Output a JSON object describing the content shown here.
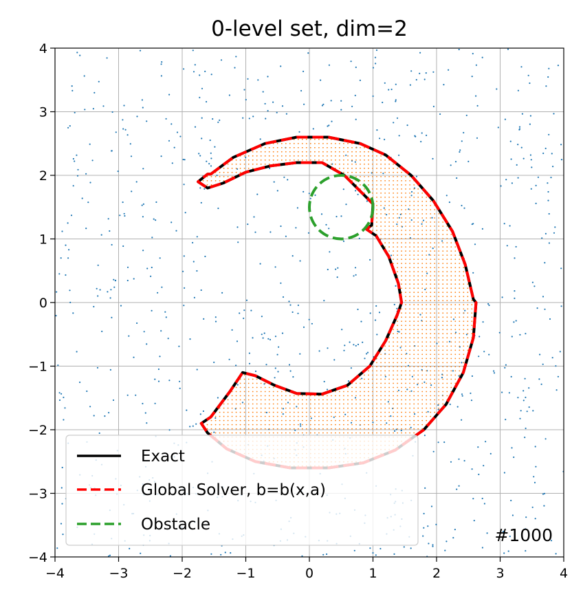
{
  "chart_data": {
    "type": "line",
    "title": "0-level set, dim=2",
    "xlabel": "",
    "ylabel": "",
    "xlim": [
      -4,
      4
    ],
    "ylim": [
      -4,
      4
    ],
    "xticks": [
      -4,
      -3,
      -2,
      -1,
      0,
      1,
      2,
      3,
      4
    ],
    "yticks": [
      -4,
      -3,
      -2,
      -1,
      0,
      1,
      2,
      3,
      4
    ],
    "xtick_labels": [
      "−4",
      "−3",
      "−2",
      "−1",
      "0",
      "1",
      "2",
      "3",
      "4"
    ],
    "ytick_labels": [
      "−4",
      "−3",
      "−2",
      "−1",
      "0",
      "1",
      "2",
      "3",
      "4"
    ],
    "grid": true,
    "legend_position": "lower-left",
    "annotation": "#1000",
    "series": [
      {
        "name": "Exact",
        "style": "solid",
        "color": "#000000",
        "x": [
          -1.55,
          -1.2,
          -0.7,
          -0.2,
          0.3,
          0.8,
          1.2,
          1.6,
          1.95,
          2.25,
          2.45,
          2.58,
          2.62,
          2.58,
          2.42,
          2.15,
          1.8,
          1.35,
          0.85,
          0.3,
          -0.3,
          -0.85,
          -1.3,
          -1.6,
          -1.7,
          -1.55,
          -1.25,
          -1.05,
          -0.85,
          -0.55,
          -0.2,
          0.2,
          0.6,
          0.95,
          1.2,
          1.38,
          1.45,
          1.4,
          1.25,
          1.05,
          0.9,
          0.98,
          1.0,
          0.55,
          0.2,
          -0.2,
          -0.6,
          -1.0,
          -1.35,
          -1.6,
          -1.75,
          -1.6
        ],
        "y": [
          2.02,
          2.28,
          2.5,
          2.6,
          2.6,
          2.5,
          2.32,
          2.0,
          1.6,
          1.12,
          0.6,
          0.05,
          0.0,
          -0.55,
          -1.1,
          -1.6,
          -2.0,
          -2.32,
          -2.52,
          -2.6,
          -2.6,
          -2.5,
          -2.3,
          -2.05,
          -1.9,
          -1.8,
          -1.4,
          -1.1,
          -1.15,
          -1.3,
          -1.43,
          -1.44,
          -1.3,
          -1.0,
          -0.6,
          -0.2,
          0.0,
          0.3,
          0.72,
          1.05,
          1.15,
          1.22,
          1.55,
          2.0,
          2.2,
          2.2,
          2.15,
          2.05,
          1.88,
          1.8,
          1.9,
          2.02
        ]
      },
      {
        "name": "Global Solver, b=b(x,a)",
        "style": "dashed",
        "color": "#ff0000",
        "x": [
          -1.55,
          -1.2,
          -0.7,
          -0.2,
          0.3,
          0.8,
          1.2,
          1.6,
          1.95,
          2.25,
          2.45,
          2.58,
          2.62,
          2.58,
          2.42,
          2.15,
          1.8,
          1.35,
          0.85,
          0.3,
          -0.3,
          -0.85,
          -1.3,
          -1.6,
          -1.7,
          -1.55,
          -1.25,
          -1.05,
          -0.85,
          -0.55,
          -0.2,
          0.2,
          0.6,
          0.95,
          1.2,
          1.38,
          1.45,
          1.4,
          1.25,
          1.05,
          0.9,
          0.98,
          1.0,
          0.55,
          0.2,
          -0.2,
          -0.6,
          -1.0,
          -1.35,
          -1.6,
          -1.75,
          -1.6
        ],
        "y": [
          2.02,
          2.28,
          2.5,
          2.6,
          2.6,
          2.5,
          2.32,
          2.0,
          1.6,
          1.12,
          0.6,
          0.05,
          0.0,
          -0.55,
          -1.1,
          -1.6,
          -2.0,
          -2.32,
          -2.52,
          -2.6,
          -2.6,
          -2.5,
          -2.3,
          -2.05,
          -1.9,
          -1.8,
          -1.4,
          -1.1,
          -1.15,
          -1.3,
          -1.43,
          -1.44,
          -1.3,
          -1.0,
          -0.6,
          -0.2,
          0.0,
          0.3,
          0.72,
          1.05,
          1.15,
          1.22,
          1.55,
          2.0,
          2.2,
          2.2,
          2.15,
          2.05,
          1.88,
          1.8,
          1.9,
          2.02
        ]
      },
      {
        "name": "Obstacle",
        "style": "dashed",
        "color": "#2ca02c",
        "circle": {
          "cx": 0.5,
          "cy": 1.5,
          "r": 0.5
        }
      }
    ],
    "scatter": {
      "colors": {
        "samples": "#1f77b4",
        "fill": "#ff7f0e"
      }
    }
  }
}
